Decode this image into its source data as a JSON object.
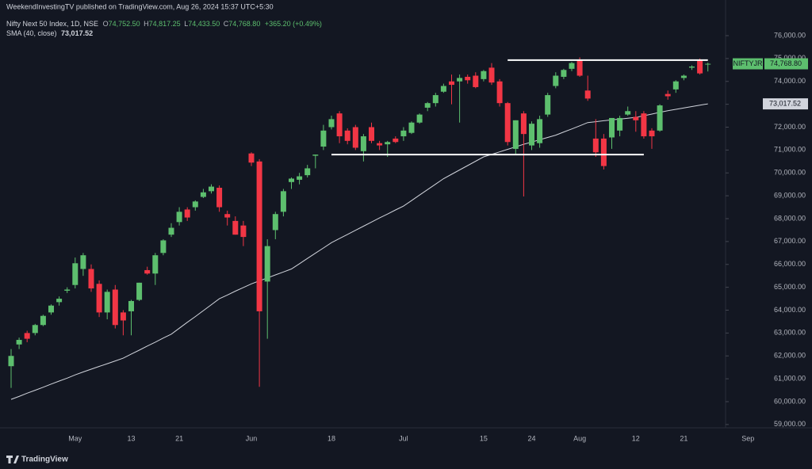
{
  "chart_data": {
    "type": "candlestick",
    "header": "WeekendInvestingTV published on TradingView.com, Aug 26, 2024 15:37 UTC+5:30",
    "title": "Nifty Next 50 Index, 1D, NSE",
    "ohlc_labels": [
      "O",
      "H",
      "L",
      "C"
    ],
    "ohlc_value_labels": [
      "74,752.50",
      "74,817.25",
      "74,433.50",
      "74,768.80"
    ],
    "change_label": "+365.20 (+0.49%)",
    "symbol": "NIFTYJR",
    "last_price_label": "74,768.80",
    "footer": "TradingView",
    "up_color": "#5dbf6e",
    "down_color": "#f23645",
    "grid": false,
    "categories": [
      null,
      null,
      null,
      null,
      null,
      null,
      null,
      null,
      "May",
      null,
      null,
      null,
      null,
      null,
      null,
      "13",
      null,
      null,
      null,
      null,
      null,
      "21",
      null,
      null,
      null,
      null,
      null,
      null,
      null,
      null,
      "Jun",
      null,
      null,
      null,
      null,
      null,
      null,
      null,
      null,
      null,
      "18",
      null,
      null,
      null,
      null,
      null,
      null,
      null,
      null,
      "Jul",
      null,
      null,
      null,
      null,
      null,
      null,
      null,
      null,
      null,
      "15",
      null,
      null,
      null,
      null,
      null,
      "24",
      null,
      null,
      null,
      null,
      null,
      "Aug",
      null,
      null,
      null,
      null,
      null,
      null,
      "12",
      null,
      null,
      null,
      null,
      null,
      "21",
      null,
      null,
      null,
      null,
      null,
      null,
      null,
      "Sep"
    ],
    "open": [
      61550,
      62500,
      63000,
      63000,
      63350,
      63900,
      64350,
      64850,
      65100,
      65800,
      65800,
      65150,
      63900,
      64900,
      63900,
      63950,
      64450,
      65750,
      65600,
      66500,
      67300,
      67850,
      68400,
      68500,
      68950,
      69200,
      69350,
      68200,
      67900,
      67700,
      70850,
      70500,
      65250,
      67500,
      68300,
      69600,
      69700,
      69900,
      70750,
      71150,
      72000,
      72600,
      71850,
      72000,
      70950,
      72000,
      71300,
      71250,
      71500,
      71600,
      71750,
      72200,
      72850,
      73050,
      73550,
      74000,
      74000,
      74200,
      74250,
      74100,
      74600,
      74000,
      73050,
      71050,
      72600,
      71200,
      71300,
      72550,
      73800,
      74200,
      74550,
      74950,
      73600,
      71500,
      71500,
      71550,
      71850,
      72550,
      72450,
      72600,
      71850,
      71850,
      73450,
      73650,
      74150,
      74600,
      74900,
      74752.5,
      null,
      null,
      null,
      null,
      null
    ],
    "high": [
      62300,
      62800,
      63100,
      63400,
      63800,
      64250,
      64600,
      65000,
      66300,
      66500,
      66000,
      65300,
      64900,
      65100,
      64000,
      64450,
      65200,
      65900,
      66500,
      67100,
      67800,
      68500,
      68500,
      68800,
      69300,
      69500,
      69450,
      68350,
      68100,
      67900,
      70900,
      70600,
      67100,
      68300,
      69300,
      69800,
      70000,
      70350,
      70800,
      72100,
      72500,
      72700,
      71950,
      72100,
      71700,
      72200,
      71400,
      71400,
      71600,
      72000,
      72250,
      72600,
      73100,
      73500,
      73900,
      74300,
      74300,
      74300,
      74400,
      74500,
      74800,
      74100,
      73100,
      72300,
      72700,
      72250,
      72500,
      73500,
      74400,
      74550,
      74850,
      75050,
      74250,
      72350,
      71700,
      72400,
      72500,
      72900,
      72700,
      72700,
      71950,
      73000,
      73600,
      74050,
      74300,
      74700,
      75000,
      74817.25,
      null,
      null,
      null,
      null,
      null
    ],
    "low": [
      60600,
      62300,
      62600,
      62900,
      63300,
      63800,
      64200,
      64750,
      64950,
      65500,
      64800,
      63700,
      63600,
      63200,
      62900,
      62900,
      64400,
      65550,
      65100,
      66400,
      67200,
      67700,
      67900,
      68350,
      68900,
      69100,
      68300,
      67700,
      67300,
      66800,
      70300,
      60650,
      62750,
      67100,
      68100,
      69300,
      69500,
      69800,
      70200,
      71000,
      71900,
      71300,
      71250,
      71000,
      70500,
      71300,
      71000,
      70700,
      71300,
      71400,
      71700,
      72150,
      72700,
      72900,
      73500,
      73000,
      72200,
      73900,
      73700,
      74000,
      73850,
      72900,
      71200,
      70800,
      68970,
      71000,
      71100,
      72450,
      73700,
      74100,
      74450,
      74200,
      73150,
      70700,
      70150,
      71050,
      71600,
      72500,
      71800,
      71500,
      71050,
      71800,
      73200,
      73500,
      74050,
      74500,
      74300,
      74433.5,
      null,
      null,
      null,
      null,
      null
    ],
    "close": [
      62000,
      62700,
      62750,
      63350,
      63750,
      64200,
      64500,
      64900,
      66050,
      66400,
      64950,
      63900,
      64800,
      63350,
      63550,
      64400,
      65200,
      65600,
      66400,
      67050,
      67600,
      68300,
      68050,
      68750,
      69150,
      69400,
      68500,
      68050,
      67300,
      67200,
      70450,
      63950,
      66800,
      68200,
      69200,
      69750,
      69850,
      70200,
      70800,
      71850,
      72350,
      71600,
      71400,
      71100,
      71600,
      71400,
      71200,
      71350,
      71350,
      71850,
      72200,
      72550,
      73050,
      73400,
      73800,
      73850,
      74150,
      74050,
      73750,
      74450,
      73950,
      73050,
      71350,
      72300,
      71700,
      72150,
      72350,
      73400,
      74250,
      74500,
      74800,
      74250,
      73250,
      70900,
      70300,
      72400,
      72400,
      72700,
      72300,
      71600,
      71600,
      72950,
      73350,
      74000,
      74250,
      74650,
      74350,
      74768.8,
      null,
      null,
      null,
      null,
      null
    ],
    "series": [
      {
        "name": "SMA (40, close)",
        "color": "#d1d4dc",
        "last_label": "73,017.52",
        "values": [
          60100,
          60230,
          60370,
          60500,
          60630,
          60770,
          60900,
          61030,
          61170,
          61300,
          61420,
          61540,
          61660,
          61780,
          61900,
          62080,
          62250,
          62430,
          62600,
          62780,
          62950,
          63210,
          63470,
          63720,
          63980,
          64240,
          64500,
          64660,
          64830,
          64990,
          65150,
          65280,
          65410,
          65540,
          65670,
          65800,
          66030,
          66260,
          66490,
          66720,
          66950,
          67130,
          67310,
          67490,
          67670,
          67850,
          68030,
          68200,
          68380,
          68550,
          68790,
          69030,
          69270,
          69510,
          69750,
          69940,
          70130,
          70320,
          70510,
          70700,
          70810,
          70920,
          71030,
          71140,
          71250,
          71350,
          71450,
          71550,
          71650,
          71790,
          71920,
          72060,
          72200,
          72240,
          72280,
          72320,
          72350,
          72390,
          72430,
          72500,
          72570,
          72650,
          72720,
          72780,
          72840,
          72900,
          72960,
          73017.52,
          null,
          null,
          null,
          null,
          null
        ]
      }
    ],
    "levels": [
      {
        "value": 74930,
        "x": [
          62,
          87
        ]
      },
      {
        "value": 70800,
        "x": [
          40,
          79
        ]
      }
    ],
    "ylim": [
      58857,
      77558
    ],
    "yticks": [
      {
        "value": 59000,
        "label": "59,000.00"
      },
      {
        "value": 60000,
        "label": "60,000.00"
      },
      {
        "value": 61000,
        "label": "61,000.00"
      },
      {
        "value": 62000,
        "label": "62,000.00"
      },
      {
        "value": 63000,
        "label": "63,000.00"
      },
      {
        "value": 64000,
        "label": "64,000.00"
      },
      {
        "value": 65000,
        "label": "65,000.00"
      },
      {
        "value": 66000,
        "label": "66,000.00"
      },
      {
        "value": 67000,
        "label": "67,000.00"
      },
      {
        "value": 68000,
        "label": "68,000.00"
      },
      {
        "value": 69000,
        "label": "69,000.00"
      },
      {
        "value": 70000,
        "label": "70,000.00"
      },
      {
        "value": 71000,
        "label": "71,000.00"
      },
      {
        "value": 72000,
        "label": "72,000.00"
      },
      {
        "value": 73000,
        "label": "73,000.00"
      },
      {
        "value": 74000,
        "label": "74,000.00"
      },
      {
        "value": 75000,
        "label": "75,000.00"
      },
      {
        "value": 76000,
        "label": "76,000.00"
      }
    ]
  }
}
